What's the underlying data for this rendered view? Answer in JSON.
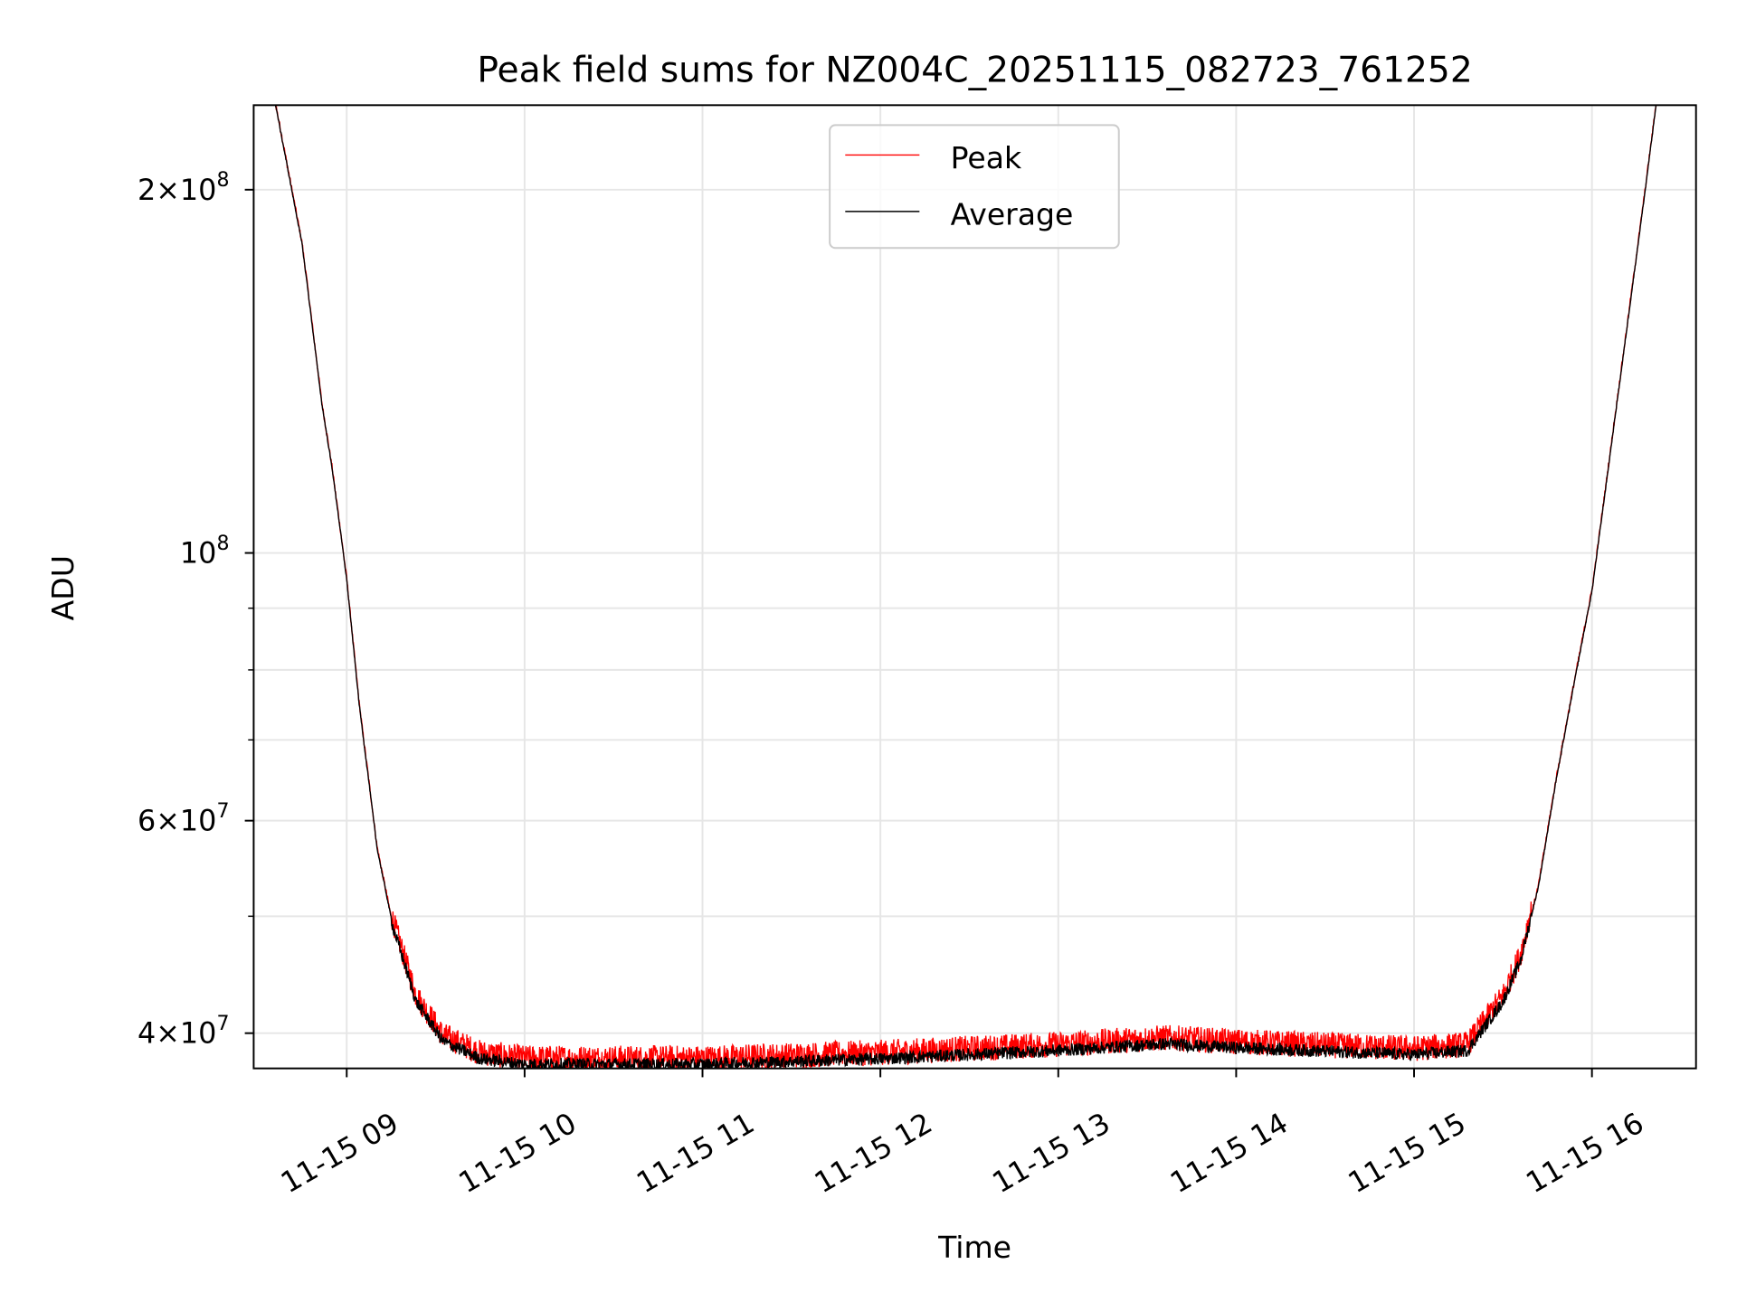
{
  "chart_data": {
    "type": "line",
    "title": "Peak field sums for NZ004C_20251115_082723_761252",
    "xlabel": "Time",
    "ylabel": "ADU",
    "yscale": "log",
    "xlim_hours": [
      8.477,
      16.585
    ],
    "ylim": [
      37400000,
      235000000
    ],
    "grid": true,
    "legend_placement": "upper center",
    "x_ticks": [
      {
        "hour": 9,
        "label": "11-15 09"
      },
      {
        "hour": 10,
        "label": "11-15 10"
      },
      {
        "hour": 11,
        "label": "11-15 11"
      },
      {
        "hour": 12,
        "label": "11-15 12"
      },
      {
        "hour": 13,
        "label": "11-15 13"
      },
      {
        "hour": 14,
        "label": "11-15 14"
      },
      {
        "hour": 15,
        "label": "11-15 15"
      },
      {
        "hour": 16,
        "label": "11-15 16"
      }
    ],
    "y_ticks": [
      {
        "value": 200000000,
        "mant": "2×10",
        "exp": "8"
      },
      {
        "value": 100000000,
        "mant": "10",
        "exp": "8"
      },
      {
        "value": 60000000,
        "mant": "6×10",
        "exp": "7"
      },
      {
        "value": 40000000,
        "mant": "4×10",
        "exp": "7"
      }
    ],
    "y_minor_ticks": [
      90000000,
      80000000,
      70000000,
      50000000
    ],
    "series": [
      {
        "name": "Peak",
        "color": "#ff0000",
        "offset_frac": 0.012,
        "noise_frac": 0.025
      },
      {
        "name": "Average",
        "color": "#000000",
        "offset_frac": 0.0,
        "noise_frac": 0.012
      }
    ],
    "baseline_points": [
      [
        8.48,
        300000000
      ],
      [
        8.6,
        235000000
      ],
      [
        8.75,
        180000000
      ],
      [
        8.86,
        133000000
      ],
      [
        8.92,
        117000000
      ],
      [
        9.0,
        95000000
      ],
      [
        9.07,
        75000000
      ],
      [
        9.17,
        57000000
      ],
      [
        9.26,
        49000000
      ],
      [
        9.39,
        42500000
      ],
      [
        9.54,
        39400000
      ],
      [
        9.75,
        38100000
      ],
      [
        10.0,
        37700000
      ],
      [
        11.0,
        37700000
      ],
      [
        12.0,
        38100000
      ],
      [
        13.0,
        38700000
      ],
      [
        13.6,
        39200000
      ],
      [
        14.0,
        38900000
      ],
      [
        15.0,
        38400000
      ],
      [
        15.3,
        38700000
      ],
      [
        15.5,
        42500000
      ],
      [
        15.6,
        46000000
      ],
      [
        15.7,
        53000000
      ],
      [
        15.8,
        65000000
      ],
      [
        15.9,
        78000000
      ],
      [
        16.0,
        93000000
      ],
      [
        16.1,
        120000000
      ],
      [
        16.2,
        155000000
      ],
      [
        16.3,
        200000000
      ],
      [
        16.36,
        235000000
      ],
      [
        16.45,
        290000000
      ]
    ]
  }
}
